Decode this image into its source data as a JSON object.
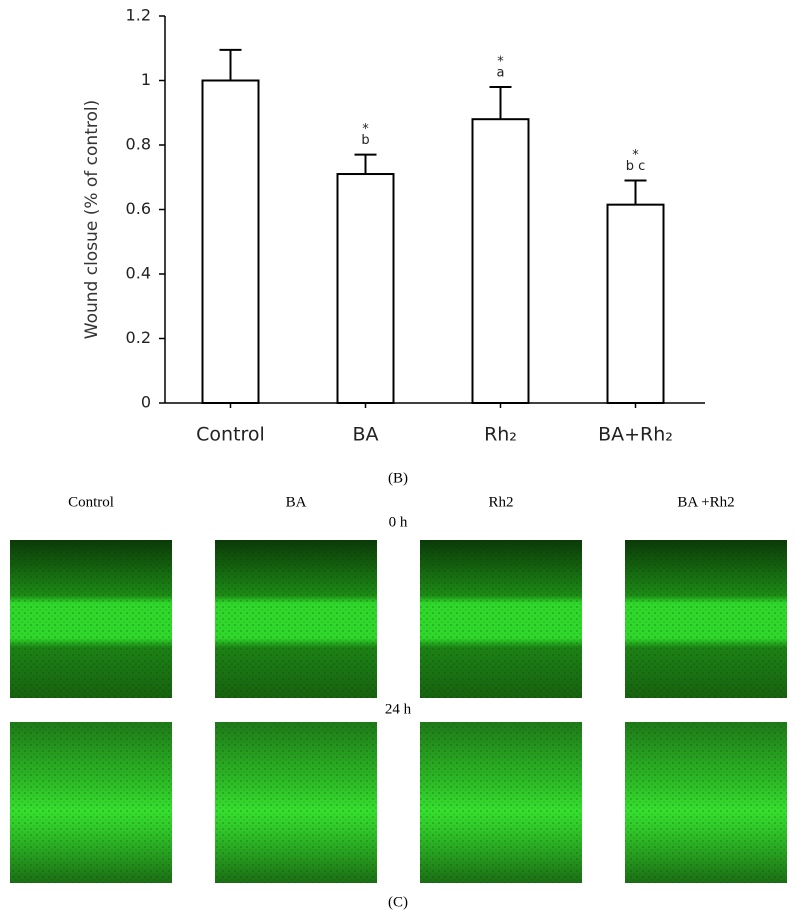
{
  "chart_data": {
    "type": "bar",
    "ylabel": "Wound closue (% of control)",
    "categories": [
      "Control",
      "BA",
      "Rh₂",
      "BA+Rh₂"
    ],
    "values": [
      1.0,
      0.71,
      0.88,
      0.615
    ],
    "errors": [
      0.095,
      0.06,
      0.1,
      0.075
    ],
    "annotations": [
      null,
      [
        "*",
        "b"
      ],
      [
        "*",
        "a"
      ],
      [
        "*",
        "b c"
      ]
    ],
    "color": "#ffffff",
    "edgecolor": "#000000",
    "ylim": [
      0,
      1.2
    ],
    "yticks": [
      0,
      0.2,
      0.4,
      0.6,
      0.8,
      1,
      1.2
    ]
  },
  "panel_b_label": "(B)",
  "micrographs": {
    "columns": [
      "Control",
      "BA",
      "Rh2",
      "BA +Rh2"
    ],
    "rows": [
      "0 h",
      "24 h"
    ]
  },
  "panel_c_label": "(C)"
}
